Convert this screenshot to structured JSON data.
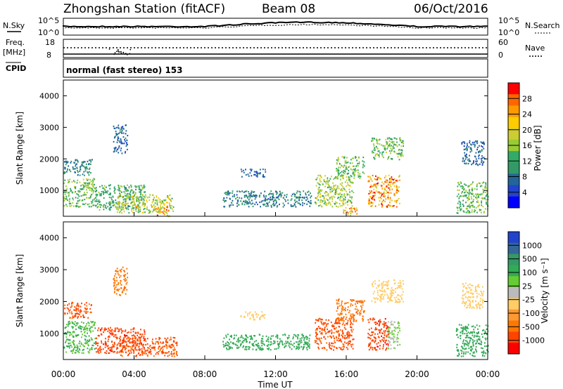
{
  "header": {
    "station": "Zhongshan Station (fitACF)",
    "beam": "Beam 08",
    "date": "06/Oct/2016"
  },
  "sky_panel": {
    "left_label": "N.Sky",
    "right_label": "N.Search",
    "left_ticks": [
      "10^5",
      "10^0"
    ],
    "right_ticks": [
      "10^5",
      "10^0"
    ]
  },
  "freq_panel": {
    "left_label_1": "Freq.",
    "left_label_2": "[MHz]",
    "right_label": "Nave",
    "left_ticks": [
      "18",
      "8"
    ],
    "right_ticks": [
      "60",
      "0"
    ]
  },
  "cpid_panel": {
    "left_label": "CPID",
    "text": "normal (fast stereo) 153"
  },
  "power_panel": {
    "ylabel": "Slant Range [km]",
    "colorbar_label": "Power [dB]",
    "colorbar_ticks": [
      "28",
      "24",
      "20",
      "16",
      "12",
      "8",
      "4"
    ],
    "colors": [
      "#ff0000",
      "#ff6600",
      "#ff9900",
      "#ffcc00",
      "#cccc33",
      "#99cc33",
      "#33aa66",
      "#339966",
      "#226699",
      "#2244cc",
      "#0000ff"
    ]
  },
  "velocity_panel": {
    "ylabel": "Slant Range [km]",
    "colorbar_label": "Velocity [m s⁻¹]",
    "colorbar_ticks": [
      "1000",
      "500",
      "100",
      "25",
      "-25",
      "-100",
      "-500",
      "-1000"
    ],
    "colors": [
      "#2244cc",
      "#336699",
      "#339966",
      "#33aa55",
      "#66cc33",
      "#bbbbbb",
      "#ffcc66",
      "#ff9933",
      "#ff7700",
      "#ff4400",
      "#ff0000"
    ]
  },
  "x_axis": {
    "label": "Time UT",
    "ticks": [
      "00:00",
      "04:00",
      "08:00",
      "12:00",
      "16:00",
      "20:00",
      "00:00"
    ]
  },
  "chart_data": [
    {
      "type": "heatmap",
      "title": "Power [dB]",
      "xlabel": "Time UT",
      "ylabel": "Slant Range [km]",
      "x_range_hours": [
        0,
        24
      ],
      "ylim": [
        180,
        4500
      ],
      "yticks": [
        1000,
        2000,
        3000,
        4000
      ],
      "value_range": [
        0,
        32
      ],
      "regions": [
        {
          "t0": 0.0,
          "t1": 1.8,
          "r0": 500,
          "r1": 1400,
          "v": 14
        },
        {
          "t0": 0.0,
          "t1": 1.6,
          "r0": 1500,
          "r1": 2000,
          "v": 8
        },
        {
          "t0": 1.8,
          "t1": 4.6,
          "r0": 400,
          "r1": 1200,
          "v": 12
        },
        {
          "t0": 3.0,
          "t1": 6.2,
          "r0": 300,
          "r1": 900,
          "v": 18
        },
        {
          "t0": 5.2,
          "t1": 6.0,
          "r0": 200,
          "r1": 500,
          "v": 24
        },
        {
          "t0": 2.8,
          "t1": 3.6,
          "r0": 2200,
          "r1": 3100,
          "v": 6
        },
        {
          "t0": 10.0,
          "t1": 11.4,
          "r0": 1450,
          "r1": 1700,
          "v": 6
        },
        {
          "t0": 9.0,
          "t1": 14.0,
          "r0": 500,
          "r1": 1000,
          "v": 8
        },
        {
          "t0": 14.2,
          "t1": 16.4,
          "r0": 500,
          "r1": 1500,
          "v": 16
        },
        {
          "t0": 15.4,
          "t1": 17.0,
          "r0": 1400,
          "r1": 2100,
          "v": 14
        },
        {
          "t0": 15.8,
          "t1": 16.6,
          "r0": 200,
          "r1": 500,
          "v": 24
        },
        {
          "t0": 17.2,
          "t1": 19.0,
          "r0": 500,
          "r1": 1500,
          "v": 26
        },
        {
          "t0": 17.4,
          "t1": 19.2,
          "r0": 2000,
          "r1": 2700,
          "v": 14
        },
        {
          "t0": 22.2,
          "t1": 24.0,
          "r0": 300,
          "r1": 1300,
          "v": 14
        },
        {
          "t0": 22.5,
          "t1": 23.8,
          "r0": 1800,
          "r1": 2600,
          "v": 6
        }
      ]
    },
    {
      "type": "heatmap",
      "title": "Velocity [m s⁻¹]",
      "xlabel": "Time UT",
      "ylabel": "Slant Range [km]",
      "x_range_hours": [
        0,
        24
      ],
      "ylim": [
        180,
        4500
      ],
      "yticks": [
        1000,
        2000,
        3000,
        4000
      ],
      "value_levels": [
        1000,
        500,
        100,
        25,
        -25,
        -100,
        -500,
        -1000
      ],
      "regions": [
        {
          "t0": 0.0,
          "t1": 1.8,
          "r0": 400,
          "r1": 1400,
          "v": 100
        },
        {
          "t0": 0.0,
          "t1": 1.6,
          "r0": 1500,
          "r1": 2000,
          "v": -300
        },
        {
          "t0": 1.8,
          "t1": 4.6,
          "r0": 400,
          "r1": 1200,
          "v": -400
        },
        {
          "t0": 3.0,
          "t1": 6.4,
          "r0": 300,
          "r1": 900,
          "v": -300
        },
        {
          "t0": 2.8,
          "t1": 3.6,
          "r0": 2200,
          "r1": 3100,
          "v": -200
        },
        {
          "t0": 10.0,
          "t1": 11.4,
          "r0": 1450,
          "r1": 1700,
          "v": 0
        },
        {
          "t0": 9.0,
          "t1": 14.0,
          "r0": 500,
          "r1": 1000,
          "v": 150
        },
        {
          "t0": 14.2,
          "t1": 16.4,
          "r0": 500,
          "r1": 1500,
          "v": -300
        },
        {
          "t0": 15.4,
          "t1": 17.0,
          "r0": 1400,
          "r1": 2100,
          "v": -200
        },
        {
          "t0": 17.2,
          "t1": 18.4,
          "r0": 500,
          "r1": 1500,
          "v": -400
        },
        {
          "t0": 18.3,
          "t1": 19.0,
          "r0": 500,
          "r1": 1400,
          "v": 50
        },
        {
          "t0": 17.4,
          "t1": 19.2,
          "r0": 2000,
          "r1": 2700,
          "v": 0
        },
        {
          "t0": 22.2,
          "t1": 24.0,
          "r0": 300,
          "r1": 1300,
          "v": 200
        },
        {
          "t0": 22.5,
          "t1": 23.8,
          "r0": 1800,
          "r1": 2600,
          "v": 0
        }
      ]
    }
  ]
}
